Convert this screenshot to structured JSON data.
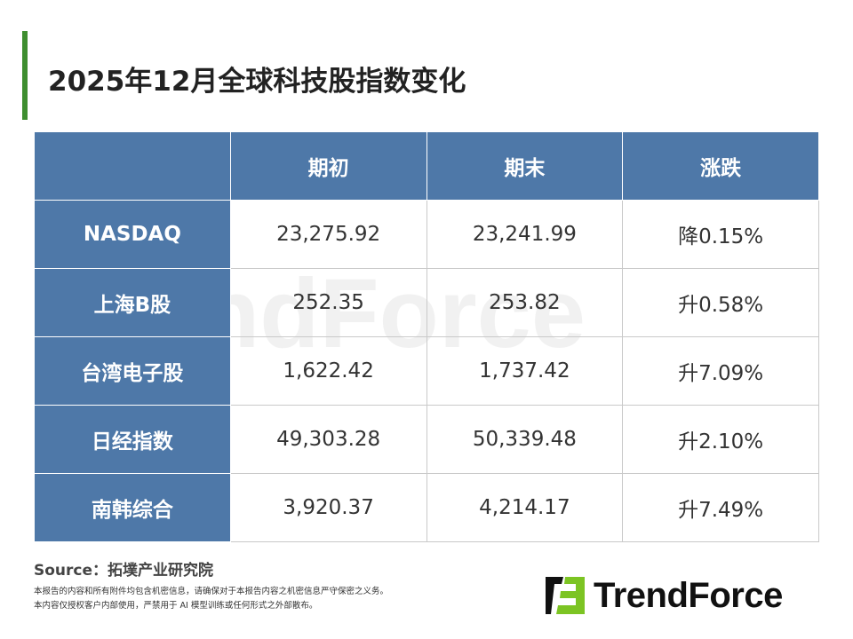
{
  "title": "2025年12月全球科技股指数变化",
  "watermark": "TrendForce",
  "table": {
    "headers": [
      "",
      "期初",
      "期末",
      "涨跌"
    ],
    "rows": [
      [
        "NASDAQ",
        "23,275.92",
        "23,241.99",
        "降0.15%"
      ],
      [
        "上海B股",
        "252.35",
        "253.82",
        "升0.58%"
      ],
      [
        "台湾电子股",
        "1,622.42",
        "1,737.42",
        "升7.09%"
      ],
      [
        "日经指数",
        "49,303.28",
        "50,339.48",
        "升2.10%"
      ],
      [
        "南韩综合",
        "3,920.37",
        "4,214.17",
        "升7.49%"
      ]
    ]
  },
  "source": "Source：拓墣产业研究院",
  "notes": [
    "本报告的内容和所有附件均包含机密信息，请确保对于本报告内容之机密信息严守保密之义务。",
    "本内容仅授权客户内部使用，严禁用于 AI 模型训练或任何形式之外部散布。"
  ],
  "logo": {
    "text": "TrendForce",
    "colors": {
      "dark": "#111111",
      "green": "#7cc423"
    }
  },
  "colors": {
    "header": "#4e78a8",
    "accent_bar": "#3e8e2f"
  }
}
